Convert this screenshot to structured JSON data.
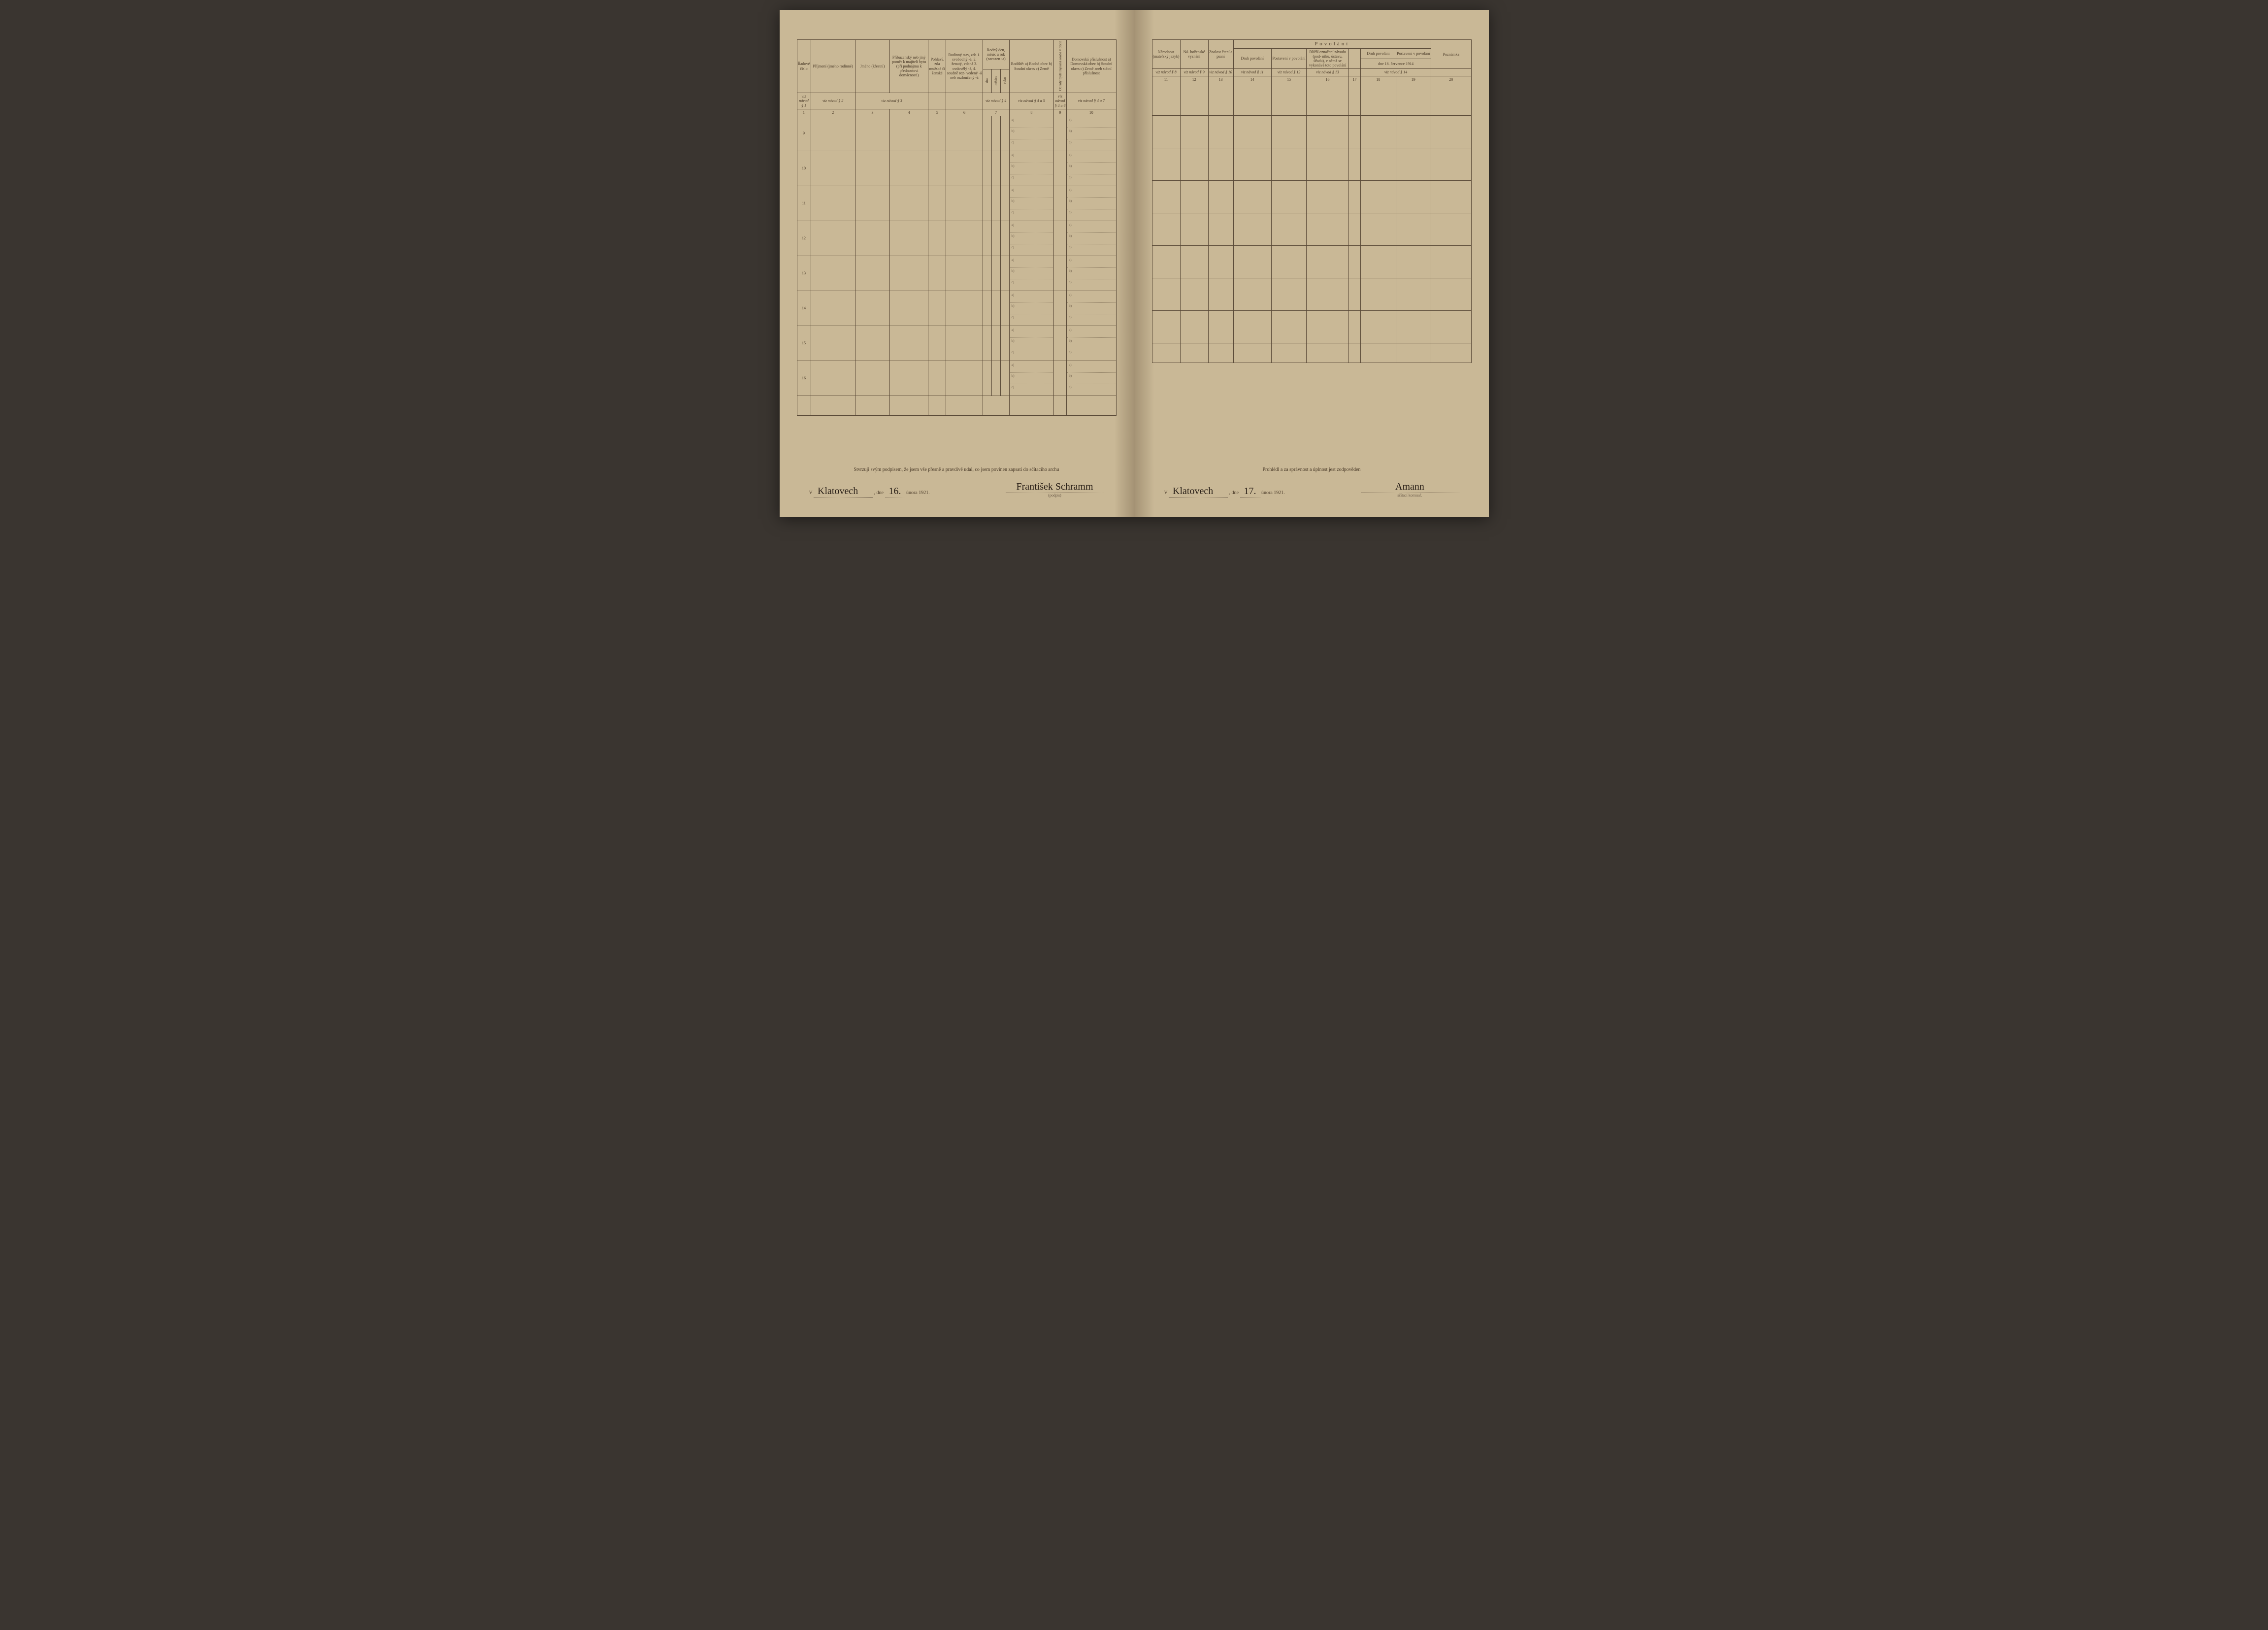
{
  "left": {
    "headers": {
      "c1": "Řadové číslo",
      "c2": "Příjmení (jméno rodinné)",
      "c3": "Jméno (křestní)",
      "c4": "Příbuzenský neb jiný poměr k majiteli bytu (při podnájmu k přednostovi domácnosti)",
      "c5": "Pohlaví, zda mužské či ženské",
      "c6": "Rodinný stav, zda 1. svobodný -á, 2. ženatý, vdaná 3. ovdovělý -á, 4. soudně roz- vedený -á neb rozloučený -á",
      "c7_top": "Rodný den, měsíc a rok (narozen -a)",
      "c7_a": "dne",
      "c7_b": "měsíce",
      "c7_c": "roku",
      "c8": "Rodiště: a) Rodná obec b) Soudní okres c) Země",
      "c9": "Od kdy bydlí zapsaná osoba v obci?",
      "c10": "Domovská příslušnost a) Domovská obec b) Soudní okres c) Země aneb státní příslušnost"
    },
    "refs": {
      "r1": "viz návod § 1",
      "r2": "viz návod § 2",
      "r3": "viz návod § 3",
      "r4": "viz návod § 4",
      "r5": "viz návod § 4 a 5",
      "r6": "viz návod § 4 a 6",
      "r7": "viz návod § 4 a 7"
    },
    "colnums": [
      "1",
      "2",
      "3",
      "4",
      "5",
      "6",
      "7",
      "8",
      "9",
      "10"
    ],
    "rownums": [
      "9",
      "10",
      "11",
      "12",
      "13",
      "14",
      "15",
      "16"
    ],
    "sub_a": "a)",
    "sub_b": "b)",
    "sub_c": "c)",
    "footer_text": "Stvrzuji svým podpisem, že jsem vše přesně a pravdivě udal, co jsem povinen zapsati do sčítacího archu",
    "place_prefix": "V",
    "place": "Klatovech",
    "date_prefix": ", dne",
    "date_day": "16.",
    "date_rest": "února 1921.",
    "signature": "František Schramm",
    "sig_label": "(podpis)"
  },
  "right": {
    "headers": {
      "c11": "Národnost (mateřský jazyk)",
      "c12": "Ná- boženské vyznání",
      "c13": "Znalost čtení a psaní",
      "pov": "Povolání",
      "c14": "Druh povolání",
      "c15": "Postavení v povolání",
      "c16": "Bližší označení závodu (pod- niku, ústavu, úřadu), v němž se vykonává toto povolání",
      "c17": "",
      "c18": "Druh povolání",
      "c19": "Postavení v povolání",
      "c18_19_sub": "dne 16. července 1914",
      "c20": "Poznámka"
    },
    "refs": {
      "r11": "viz návod § 8",
      "r12": "viz návod § 9",
      "r13": "viz návod § 10",
      "r14": "viz návod § 11",
      "r15": "viz návod § 12",
      "r16": "viz návod § 13",
      "r18": "viz návod § 14"
    },
    "colnums": [
      "11",
      "12",
      "13",
      "14",
      "15",
      "16",
      "17",
      "18",
      "19",
      "20"
    ],
    "footer_text": "Prohlédl a za správnost a úplnost jest zodpověden",
    "place_prefix": "V",
    "place": "Klatovech",
    "date_prefix": ", dne",
    "date_day": "17.",
    "date_rest": "února 1921.",
    "signature": "Amann",
    "sig_label": "sčítací komisař."
  },
  "colors": {
    "paper": "#c9b896",
    "ink": "#4a3a28",
    "rule": "#5a4a38"
  }
}
